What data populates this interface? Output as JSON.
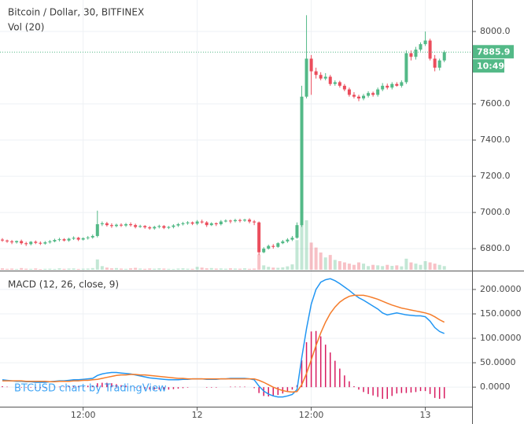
{
  "chart_data": [
    {
      "type": "candlestick",
      "title": "Bitcoin / Dollar, 30, BITFINEX",
      "volume_label": "Vol (20)",
      "countdown": "10:49",
      "categories": [
        null,
        null,
        null,
        null,
        null,
        null,
        null,
        null,
        null,
        null,
        null,
        null,
        null,
        null,
        null,
        null,
        null,
        "12:00",
        null,
        null,
        null,
        null,
        null,
        null,
        null,
        null,
        null,
        null,
        null,
        null,
        null,
        null,
        null,
        null,
        null,
        null,
        null,
        null,
        null,
        null,
        null,
        "12",
        null,
        null,
        null,
        null,
        null,
        null,
        null,
        null,
        null,
        null,
        null,
        null,
        null,
        null,
        null,
        null,
        null,
        null,
        null,
        null,
        null,
        null,
        null,
        "12:00",
        null,
        null,
        null,
        null,
        null,
        null,
        null,
        null,
        null,
        null,
        null,
        null,
        null,
        null,
        null,
        null,
        null,
        null,
        null,
        null,
        null,
        null,
        null,
        "13",
        null,
        null,
        null,
        null
      ],
      "open": [
        6850,
        6845,
        6840,
        6835,
        6842,
        6830,
        6825,
        6838,
        6832,
        6828,
        6835,
        6840,
        6848,
        6852,
        6845,
        6855,
        6860,
        6850,
        6858,
        6862,
        6870,
        6935,
        6940,
        6930,
        6925,
        6932,
        6928,
        6935,
        6930,
        6920,
        6925,
        6918,
        6912,
        6920,
        6925,
        6915,
        6920,
        6928,
        6935,
        6940,
        6945,
        6938,
        6950,
        6945,
        6930,
        6940,
        6935,
        6950,
        6955,
        6952,
        6958,
        6955,
        6960,
        6950,
        6945,
        6780,
        6800,
        6815,
        6810,
        6830,
        6840,
        6850,
        6860,
        6930,
        7640,
        7850,
        7780,
        7760,
        7740,
        7750,
        7710,
        7720,
        7700,
        7680,
        7650,
        7640,
        7630,
        7645,
        7660,
        7650,
        7680,
        7700,
        7690,
        7710,
        7700,
        7720,
        7880,
        7860,
        7900,
        7930,
        7950,
        7850,
        7800,
        7840
      ],
      "high": [
        6858,
        6850,
        6848,
        6845,
        6850,
        6838,
        6842,
        6845,
        6840,
        6842,
        6848,
        6855,
        6860,
        6858,
        6860,
        6868,
        6865,
        6862,
        6870,
        6878,
        7010,
        6950,
        6948,
        6940,
        6938,
        6940,
        6942,
        6945,
        6938,
        6932,
        6930,
        6925,
        6926,
        6932,
        6930,
        6925,
        6935,
        6942,
        6948,
        6952,
        6950,
        6958,
        6960,
        6952,
        6946,
        6945,
        6958,
        6962,
        6960,
        6965,
        6965,
        6965,
        6968,
        6958,
        6950,
        6808,
        6822,
        6825,
        6835,
        6848,
        6858,
        6870,
        6945,
        7700,
        8090,
        7870,
        7800,
        7775,
        7770,
        7760,
        7730,
        7728,
        7710,
        7690,
        7665,
        7650,
        7655,
        7670,
        7668,
        7690,
        7715,
        7712,
        7720,
        7720,
        7730,
        7895,
        7895,
        7915,
        7940,
        8000,
        7960,
        7870,
        7850,
        7895
      ],
      "low": [
        6838,
        6832,
        6825,
        6828,
        6822,
        6815,
        6818,
        6825,
        6820,
        6822,
        6828,
        6835,
        6840,
        6840,
        6838,
        6848,
        6842,
        6845,
        6850,
        6855,
        6862,
        6925,
        6922,
        6915,
        6918,
        6920,
        6920,
        6922,
        6912,
        6915,
        6910,
        6905,
        6905,
        6912,
        6908,
        6908,
        6912,
        6920,
        6928,
        6932,
        6930,
        6930,
        6938,
        6920,
        6925,
        6925,
        6928,
        6945,
        6940,
        6945,
        6945,
        6948,
        6940,
        6930,
        6765,
        6775,
        6795,
        6800,
        6805,
        6825,
        6832,
        6842,
        6855,
        6920,
        7630,
        7650,
        7740,
        7730,
        7730,
        7700,
        7700,
        7690,
        7670,
        7640,
        7630,
        7615,
        7620,
        7635,
        7640,
        7640,
        7670,
        7680,
        7680,
        7695,
        7690,
        7710,
        7840,
        7845,
        7890,
        7920,
        7840,
        7780,
        7785,
        7830
      ],
      "close": [
        6845,
        6840,
        6835,
        6842,
        6830,
        6825,
        6838,
        6832,
        6828,
        6835,
        6840,
        6848,
        6852,
        6845,
        6855,
        6860,
        6850,
        6858,
        6862,
        6870,
        6935,
        6940,
        6930,
        6925,
        6932,
        6928,
        6935,
        6930,
        6920,
        6925,
        6918,
        6912,
        6920,
        6925,
        6915,
        6920,
        6928,
        6935,
        6940,
        6945,
        6938,
        6950,
        6945,
        6930,
        6940,
        6935,
        6950,
        6955,
        6952,
        6958,
        6955,
        6960,
        6950,
        6945,
        6780,
        6800,
        6815,
        6810,
        6830,
        6840,
        6850,
        6860,
        6930,
        7640,
        7850,
        7780,
        7760,
        7740,
        7750,
        7710,
        7720,
        7700,
        7680,
        7650,
        7640,
        7630,
        7645,
        7660,
        7650,
        7680,
        7700,
        7690,
        7710,
        7700,
        7720,
        7880,
        7860,
        7900,
        7930,
        7950,
        7850,
        7800,
        7840,
        7885.9
      ],
      "volume": [
        60,
        40,
        50,
        35,
        70,
        45,
        40,
        55,
        30,
        40,
        45,
        35,
        60,
        40,
        50,
        55,
        35,
        45,
        50,
        70,
        420,
        150,
        90,
        60,
        70,
        50,
        40,
        60,
        80,
        50,
        40,
        55,
        45,
        60,
        50,
        40,
        35,
        50,
        60,
        45,
        40,
        120,
        90,
        60,
        70,
        50,
        55,
        45,
        60,
        50,
        45,
        60,
        40,
        50,
        620,
        180,
        120,
        90,
        80,
        100,
        140,
        220,
        1200,
        2700,
        2000,
        1100,
        900,
        700,
        500,
        600,
        400,
        350,
        300,
        250,
        200,
        300,
        250,
        150,
        200,
        180,
        150,
        200,
        160,
        180,
        140,
        450,
        300,
        250,
        200,
        350,
        300,
        250,
        200,
        150
      ],
      "up_color": "#53b987",
      "down_color": "#eb4d5c",
      "ylim": [
        6683,
        8174
      ],
      "yticks": [
        {
          "value": 6800,
          "label": "6800.0"
        },
        {
          "value": 7000,
          "label": "7000.0"
        },
        {
          "value": 7200,
          "label": "7200.0"
        },
        {
          "value": 7400,
          "label": "7400.0"
        },
        {
          "value": 7600,
          "label": "7600.0"
        },
        {
          "value": 8000,
          "label": "8000.0"
        }
      ],
      "grid": true
    },
    {
      "type": "macd",
      "title": "MACD (12, 26, close, 9)",
      "watermark": "BTCUSD chart by TradingView",
      "macd": [
        15,
        14,
        13,
        12,
        12,
        11,
        11,
        10,
        10,
        10,
        11,
        12,
        13,
        13,
        14,
        15,
        15,
        16,
        17,
        18,
        24,
        27,
        29,
        30,
        30,
        29,
        28,
        27,
        25,
        23,
        21,
        19,
        18,
        17,
        16,
        15,
        15,
        15,
        16,
        16,
        17,
        17,
        17,
        16,
        16,
        16,
        17,
        17,
        18,
        18,
        18,
        18,
        17,
        15,
        2,
        -8,
        -14,
        -18,
        -20,
        -20,
        -18,
        -15,
        -5,
        60,
        120,
        170,
        200,
        215,
        220,
        222,
        218,
        212,
        205,
        198,
        190,
        183,
        178,
        172,
        166,
        160,
        152,
        148,
        150,
        152,
        150,
        148,
        147,
        146,
        146,
        144,
        135,
        122,
        114,
        110
      ],
      "signal": [
        13,
        13,
        13,
        13,
        13,
        12,
        12,
        12,
        12,
        12,
        11,
        11,
        12,
        12,
        12,
        13,
        13,
        14,
        14,
        15,
        16,
        18,
        20,
        22,
        24,
        25,
        25,
        26,
        26,
        25,
        25,
        24,
        23,
        22,
        21,
        20,
        19,
        18,
        18,
        17,
        17,
        17,
        17,
        17,
        17,
        17,
        17,
        17,
        17,
        17,
        17,
        17,
        17,
        17,
        14,
        10,
        5,
        0,
        -4,
        -7,
        -9,
        -10,
        -9,
        5,
        28,
        56,
        85,
        111,
        133,
        151,
        164,
        174,
        181,
        186,
        188,
        188,
        188,
        186,
        183,
        180,
        176,
        172,
        168,
        165,
        162,
        160,
        158,
        156,
        154,
        152,
        149,
        144,
        138,
        133
      ],
      "histogram": [
        2,
        1,
        0,
        -1,
        -1,
        -1,
        -1,
        -2,
        -2,
        -2,
        0,
        1,
        1,
        1,
        2,
        2,
        2,
        2,
        3,
        3,
        8,
        9,
        9,
        8,
        6,
        4,
        3,
        1,
        -1,
        -2,
        -4,
        -5,
        -5,
        -5,
        -5,
        -5,
        -4,
        -3,
        -2,
        -1,
        0,
        0,
        0,
        -1,
        -1,
        -1,
        0,
        0,
        1,
        1,
        1,
        1,
        0,
        -2,
        -12,
        -18,
        -19,
        -18,
        -16,
        -13,
        -9,
        -5,
        4,
        55,
        92,
        114,
        115,
        104,
        87,
        71,
        54,
        38,
        24,
        12,
        2,
        -5,
        -10,
        -14,
        -17,
        -20,
        -24,
        -24,
        -18,
        -13,
        -12,
        -12,
        -11,
        -10,
        -8,
        -8,
        -14,
        -22,
        -24,
        -23
      ],
      "macd_color": "#2196f3",
      "signal_color": "#f57c2a",
      "histogram_color": "#d81b60",
      "ylim": [
        -40,
        237
      ],
      "yticks": [
        {
          "value": 0,
          "label": "0.0000"
        },
        {
          "value": 50,
          "label": "50.0000"
        },
        {
          "value": 100,
          "label": "100.0000"
        },
        {
          "value": 150,
          "label": "150.0000"
        },
        {
          "value": 200,
          "label": "200.0000"
        }
      ],
      "grid": true
    }
  ]
}
